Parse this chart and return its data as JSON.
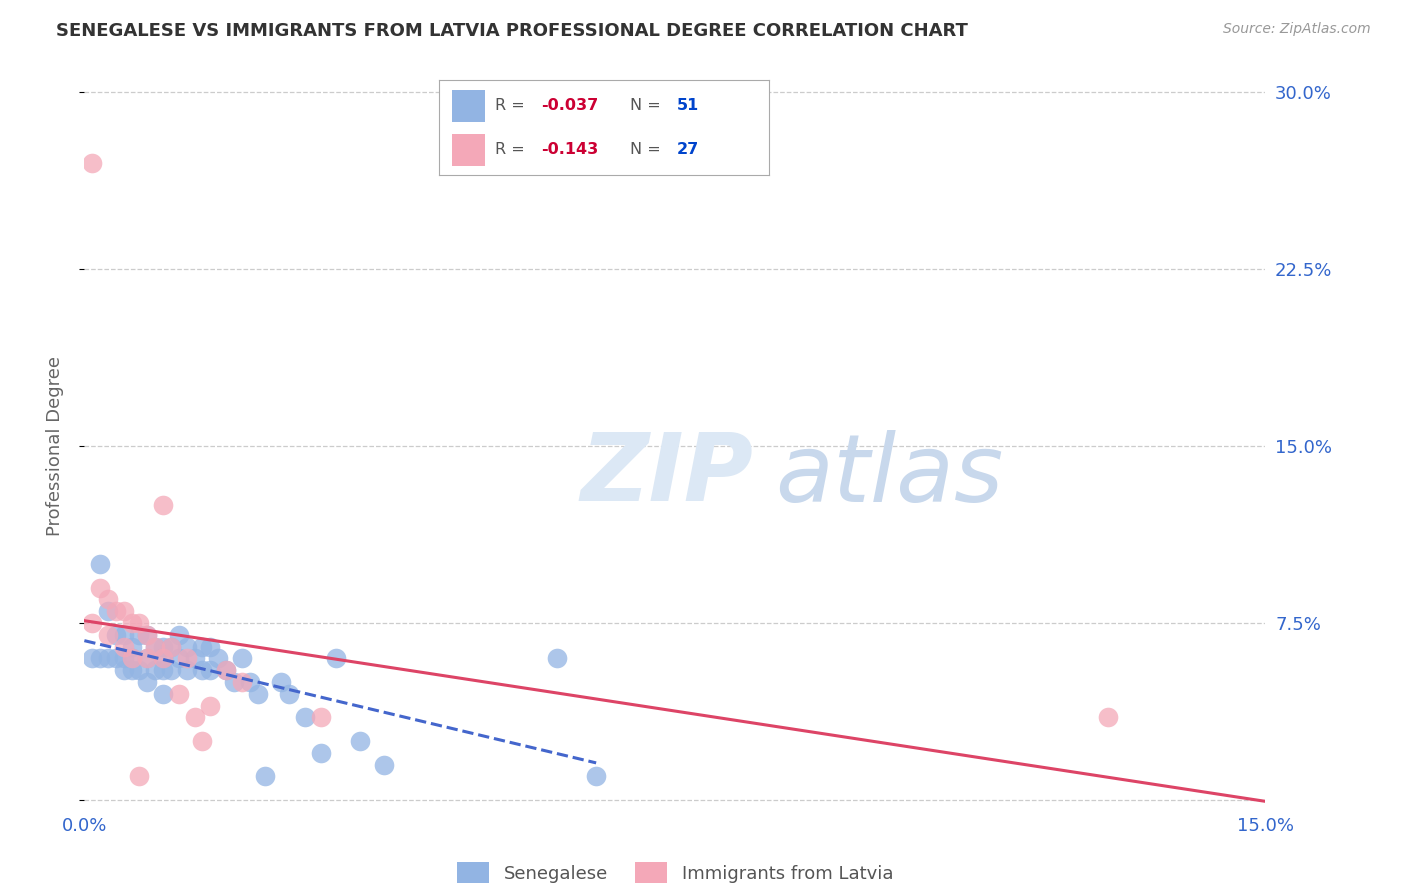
{
  "title": "SENEGALESE VS IMMIGRANTS FROM LATVIA PROFESSIONAL DEGREE CORRELATION CHART",
  "source": "Source: ZipAtlas.com",
  "ylabel": "Professional Degree",
  "xlim": [
    0.0,
    0.15
  ],
  "ylim": [
    -0.005,
    0.305
  ],
  "xticks": [
    0.0,
    0.15
  ],
  "xtick_labels": [
    "0.0%",
    "15.0%"
  ],
  "yticks": [
    0.0,
    0.075,
    0.15,
    0.225,
    0.3
  ],
  "ytick_labels_right": [
    "",
    "7.5%",
    "15.0%",
    "22.5%",
    "30.0%"
  ],
  "series1_label": "Senegalese",
  "series1_color": "#92b4e3",
  "series1_R": "-0.037",
  "series1_N": "51",
  "series2_label": "Immigrants from Latvia",
  "series2_color": "#f4a8b8",
  "series2_R": "-0.143",
  "series2_N": "27",
  "watermark_zip": "ZIP",
  "watermark_atlas": "atlas",
  "watermark_color": "#dce8f5",
  "background_color": "#ffffff",
  "grid_color": "#cccccc",
  "axis_label_color": "#3366cc",
  "title_color": "#333333",
  "senegalese_x": [
    0.001,
    0.002,
    0.002,
    0.003,
    0.003,
    0.004,
    0.004,
    0.005,
    0.005,
    0.005,
    0.006,
    0.006,
    0.006,
    0.007,
    0.007,
    0.008,
    0.008,
    0.008,
    0.009,
    0.009,
    0.01,
    0.01,
    0.01,
    0.01,
    0.011,
    0.011,
    0.012,
    0.012,
    0.013,
    0.013,
    0.014,
    0.015,
    0.015,
    0.016,
    0.016,
    0.017,
    0.018,
    0.019,
    0.02,
    0.021,
    0.022,
    0.023,
    0.025,
    0.026,
    0.028,
    0.03,
    0.032,
    0.035,
    0.038,
    0.06,
    0.065
  ],
  "senegalese_y": [
    0.06,
    0.1,
    0.06,
    0.08,
    0.06,
    0.07,
    0.06,
    0.07,
    0.06,
    0.055,
    0.065,
    0.06,
    0.055,
    0.07,
    0.055,
    0.07,
    0.06,
    0.05,
    0.065,
    0.055,
    0.065,
    0.06,
    0.055,
    0.045,
    0.065,
    0.055,
    0.07,
    0.06,
    0.065,
    0.055,
    0.06,
    0.065,
    0.055,
    0.065,
    0.055,
    0.06,
    0.055,
    0.05,
    0.06,
    0.05,
    0.045,
    0.01,
    0.05,
    0.045,
    0.035,
    0.02,
    0.06,
    0.025,
    0.015,
    0.06,
    0.01
  ],
  "latvia_x": [
    0.001,
    0.001,
    0.002,
    0.003,
    0.003,
    0.004,
    0.005,
    0.005,
    0.006,
    0.006,
    0.007,
    0.008,
    0.008,
    0.009,
    0.01,
    0.01,
    0.011,
    0.012,
    0.013,
    0.014,
    0.015,
    0.016,
    0.018,
    0.02,
    0.03,
    0.13,
    0.007
  ],
  "latvia_y": [
    0.27,
    0.075,
    0.09,
    0.085,
    0.07,
    0.08,
    0.08,
    0.065,
    0.075,
    0.06,
    0.075,
    0.07,
    0.06,
    0.065,
    0.125,
    0.06,
    0.065,
    0.045,
    0.06,
    0.035,
    0.025,
    0.04,
    0.055,
    0.05,
    0.035,
    0.035,
    0.01
  ]
}
